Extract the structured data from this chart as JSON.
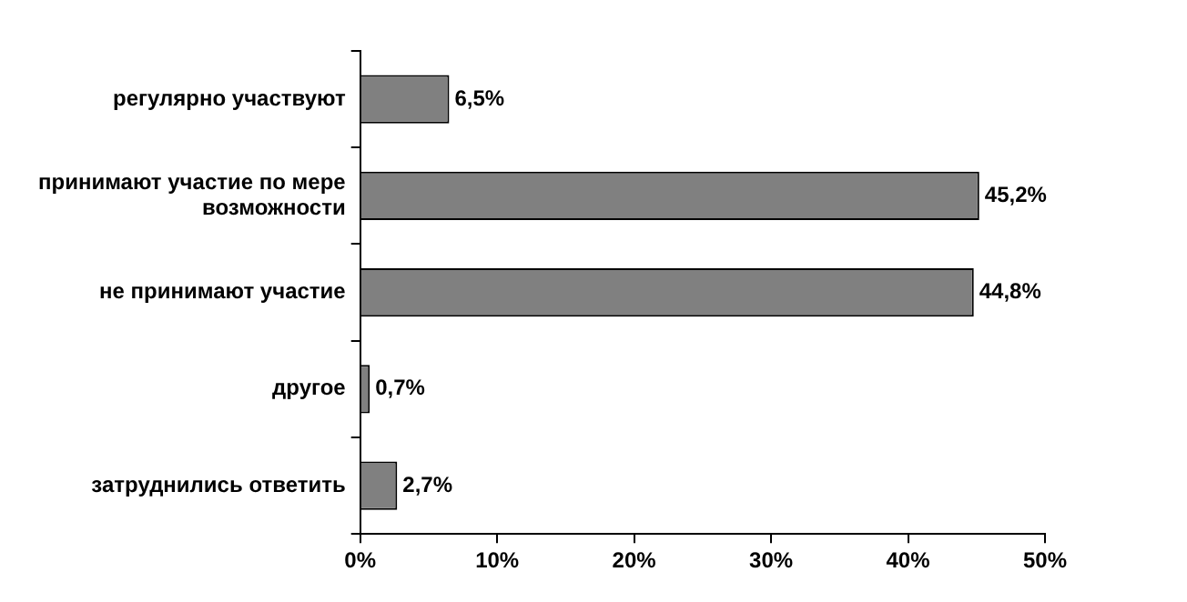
{
  "chart_data": {
    "type": "bar",
    "orientation": "horizontal",
    "categories": [
      "регулярно участвуют",
      "принимают участие по мере возможности",
      "не принимают участие",
      "другое",
      "затруднились ответить"
    ],
    "values": [
      6.5,
      45.2,
      44.8,
      0.7,
      2.7
    ],
    "value_labels": [
      "6,5%",
      "45,2%",
      "44,8%",
      "0,7%",
      "2,7%"
    ],
    "color": "#808080",
    "xlim": [
      0,
      50
    ],
    "xticks": [
      {
        "value": 0,
        "label": "0%"
      },
      {
        "value": 10,
        "label": "10%"
      },
      {
        "value": 20,
        "label": "20%"
      },
      {
        "value": 30,
        "label": "30%"
      },
      {
        "value": 40,
        "label": "40%"
      },
      {
        "value": 50,
        "label": "50%"
      }
    ],
    "grid": false,
    "legend": false
  }
}
